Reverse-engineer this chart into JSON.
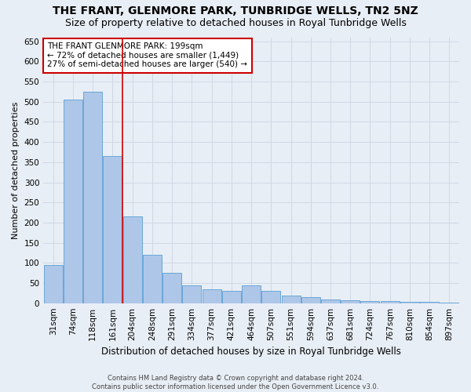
{
  "title": "THE FRANT, GLENMORE PARK, TUNBRIDGE WELLS, TN2 5NZ",
  "subtitle": "Size of property relative to detached houses in Royal Tunbridge Wells",
  "xlabel": "Distribution of detached houses by size in Royal Tunbridge Wells",
  "ylabel": "Number of detached properties",
  "footer_line1": "Contains HM Land Registry data © Crown copyright and database right 2024.",
  "footer_line2": "Contains public sector information licensed under the Open Government Licence v3.0.",
  "bar_labels": [
    "31sqm",
    "74sqm",
    "118sqm",
    "161sqm",
    "204sqm",
    "248sqm",
    "291sqm",
    "334sqm",
    "377sqm",
    "421sqm",
    "464sqm",
    "507sqm",
    "551sqm",
    "594sqm",
    "637sqm",
    "681sqm",
    "724sqm",
    "767sqm",
    "810sqm",
    "854sqm",
    "897sqm"
  ],
  "bar_values": [
    95,
    505,
    525,
    365,
    215,
    120,
    75,
    45,
    35,
    30,
    45,
    30,
    18,
    15,
    10,
    8,
    5,
    5,
    3,
    3,
    2
  ],
  "bar_color": "#aec6e8",
  "bar_edgecolor": "#5a9fd4",
  "vline_x": 3.5,
  "vline_color": "#cc0000",
  "annotation_text": "THE FRANT GLENMORE PARK: 199sqm\n← 72% of detached houses are smaller (1,449)\n27% of semi-detached houses are larger (540) →",
  "annotation_box_facecolor": "white",
  "annotation_box_edgecolor": "#cc0000",
  "ylim": [
    0,
    660
  ],
  "yticks": [
    0,
    50,
    100,
    150,
    200,
    250,
    300,
    350,
    400,
    450,
    500,
    550,
    600,
    650
  ],
  "background_color": "#e8eef5",
  "axes_facecolor": "#e8eef5",
  "grid_color": "#d0d8e4",
  "title_fontsize": 10,
  "subtitle_fontsize": 9,
  "ylabel_fontsize": 8,
  "xlabel_fontsize": 8.5,
  "tick_fontsize": 7.5,
  "annotation_fontsize": 7.5,
  "footer_fontsize": 6
}
